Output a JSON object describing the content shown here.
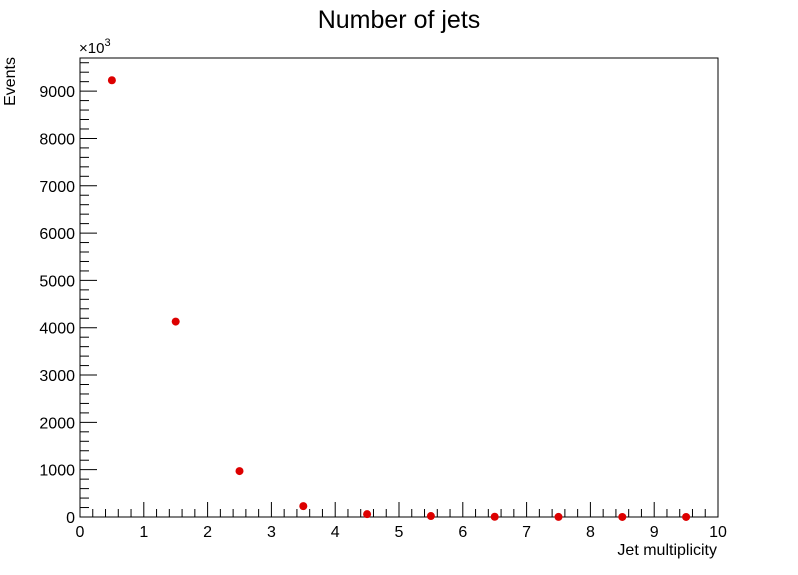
{
  "chart_data": {
    "type": "scatter",
    "title": "Number of jets",
    "xlabel": "Jet multiplicity",
    "ylabel": "Events",
    "y_multiplier_prefix": "×10",
    "y_multiplier_exponent": "3",
    "xlim": [
      0,
      10
    ],
    "ylim": [
      0,
      9700
    ],
    "x_ticks": [
      0,
      1,
      2,
      3,
      4,
      5,
      6,
      7,
      8,
      9,
      10
    ],
    "y_ticks": [
      0,
      1000,
      2000,
      3000,
      4000,
      5000,
      6000,
      7000,
      8000,
      9000
    ],
    "grid": false,
    "legend": "none",
    "marker_color": "#dd0000",
    "series": [
      {
        "x": [
          0.5,
          1.5,
          2.5,
          3.5,
          4.5,
          5.5,
          6.5,
          7.5,
          8.5,
          9.5
        ],
        "y": [
          9230,
          4130,
          970,
          230,
          60,
          20,
          5,
          2,
          1,
          0.5
        ]
      }
    ]
  }
}
